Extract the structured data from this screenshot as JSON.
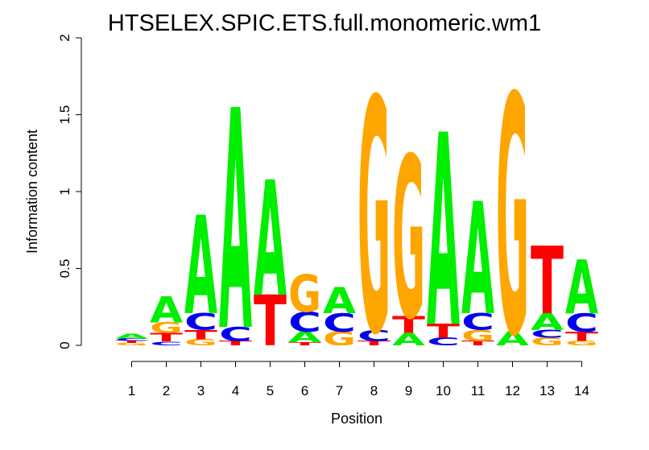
{
  "chart_data": {
    "type": "sequence-logo",
    "title": "HTSELEX.SPIC.ETS.full.monomeric.wm1",
    "xlabel": "Position",
    "ylabel": "Information content",
    "ylim": [
      0,
      2
    ],
    "yticks": [
      "0",
      "0.5",
      "1",
      "1.5",
      "2"
    ],
    "positions": [
      "1",
      "2",
      "3",
      "4",
      "5",
      "6",
      "7",
      "8",
      "9",
      "10",
      "11",
      "12",
      "13",
      "14"
    ],
    "colors": {
      "A": "#00ee00",
      "C": "#0000ee",
      "G": "#ffa500",
      "T": "#ff0000"
    },
    "stacks": [
      [
        {
          "l": "G",
          "h": 0.015
        },
        {
          "l": "T",
          "h": 0.015
        },
        {
          "l": "C",
          "h": 0.015
        },
        {
          "l": "A",
          "h": 0.03
        }
      ],
      [
        {
          "l": "C",
          "h": 0.025
        },
        {
          "l": "T",
          "h": 0.055
        },
        {
          "l": "G",
          "h": 0.07
        },
        {
          "l": "A",
          "h": 0.17
        }
      ],
      [
        {
          "l": "G",
          "h": 0.04
        },
        {
          "l": "T",
          "h": 0.06
        },
        {
          "l": "C",
          "h": 0.11
        },
        {
          "l": "A",
          "h": 0.64
        }
      ],
      [
        {
          "l": "T",
          "h": 0.03
        },
        {
          "l": "C",
          "h": 0.09
        },
        {
          "l": "A",
          "h": 1.43
        }
      ],
      [
        {
          "l": "T",
          "h": 0.33
        },
        {
          "l": "A",
          "h": 0.75
        }
      ],
      [
        {
          "l": "T",
          "h": 0.02
        },
        {
          "l": "A",
          "h": 0.07
        },
        {
          "l": "C",
          "h": 0.13
        },
        {
          "l": "G",
          "h": 0.24
        }
      ],
      [
        {
          "l": "G",
          "h": 0.09
        },
        {
          "l": "C",
          "h": 0.12
        },
        {
          "l": "A",
          "h": 0.17
        }
      ],
      [
        {
          "l": "T",
          "h": 0.03
        },
        {
          "l": "C",
          "h": 0.07
        },
        {
          "l": "G",
          "h": 1.52
        }
      ],
      [
        {
          "l": "A",
          "h": 0.08
        },
        {
          "l": "T",
          "h": 0.11
        },
        {
          "l": "G",
          "h": 1.05
        }
      ],
      [
        {
          "l": "C",
          "h": 0.05
        },
        {
          "l": "T",
          "h": 0.09
        },
        {
          "l": "A",
          "h": 1.25
        }
      ],
      [
        {
          "l": "T",
          "h": 0.03
        },
        {
          "l": "G",
          "h": 0.07
        },
        {
          "l": "C",
          "h": 0.11
        },
        {
          "l": "A",
          "h": 0.73
        }
      ],
      [
        {
          "l": "A",
          "h": 0.09
        },
        {
          "l": "G",
          "h": 1.55
        }
      ],
      [
        {
          "l": "G",
          "h": 0.05
        },
        {
          "l": "C",
          "h": 0.05
        },
        {
          "l": "A",
          "h": 0.11
        },
        {
          "l": "T",
          "h": 0.44
        }
      ],
      [
        {
          "l": "G",
          "h": 0.03
        },
        {
          "l": "T",
          "h": 0.06
        },
        {
          "l": "C",
          "h": 0.12
        },
        {
          "l": "A",
          "h": 0.35
        }
      ]
    ]
  }
}
